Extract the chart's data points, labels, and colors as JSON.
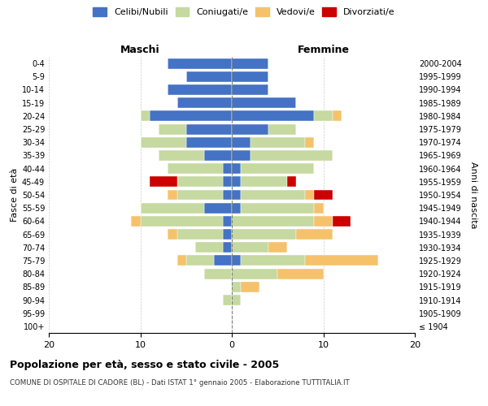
{
  "age_groups": [
    "100+",
    "95-99",
    "90-94",
    "85-89",
    "80-84",
    "75-79",
    "70-74",
    "65-69",
    "60-64",
    "55-59",
    "50-54",
    "45-49",
    "40-44",
    "35-39",
    "30-34",
    "25-29",
    "20-24",
    "15-19",
    "10-14",
    "5-9",
    "0-4"
  ],
  "birth_years": [
    "≤ 1904",
    "1905-1909",
    "1910-1914",
    "1915-1919",
    "1920-1924",
    "1925-1929",
    "1930-1934",
    "1935-1939",
    "1940-1944",
    "1945-1949",
    "1950-1954",
    "1955-1959",
    "1960-1964",
    "1965-1969",
    "1970-1974",
    "1975-1979",
    "1980-1984",
    "1985-1989",
    "1990-1994",
    "1995-1999",
    "2000-2004"
  ],
  "colors": {
    "celibe": "#4472c4",
    "coniugato": "#c5d9a0",
    "vedovo": "#f5c26b",
    "divorziato": "#cc0000"
  },
  "males": {
    "celibe": [
      0,
      0,
      0,
      0,
      0,
      2,
      1,
      1,
      1,
      3,
      1,
      1,
      1,
      3,
      5,
      5,
      9,
      6,
      7,
      5,
      7
    ],
    "coniugato": [
      0,
      0,
      1,
      0,
      3,
      3,
      3,
      5,
      9,
      7,
      5,
      5,
      6,
      5,
      5,
      3,
      1,
      0,
      0,
      0,
      0
    ],
    "vedovo": [
      0,
      0,
      0,
      0,
      0,
      1,
      0,
      1,
      1,
      0,
      1,
      0,
      0,
      0,
      0,
      0,
      0,
      0,
      0,
      0,
      0
    ],
    "divorziato": [
      0,
      0,
      0,
      0,
      0,
      0,
      0,
      0,
      0,
      0,
      0,
      3,
      0,
      0,
      0,
      0,
      0,
      0,
      0,
      0,
      0
    ]
  },
  "females": {
    "nubile": [
      0,
      0,
      0,
      0,
      0,
      1,
      0,
      0,
      0,
      1,
      1,
      1,
      1,
      2,
      2,
      4,
      9,
      7,
      4,
      4,
      4
    ],
    "coniugata": [
      0,
      0,
      1,
      1,
      5,
      7,
      4,
      7,
      9,
      8,
      7,
      5,
      8,
      9,
      6,
      3,
      2,
      0,
      0,
      0,
      0
    ],
    "vedova": [
      0,
      0,
      0,
      2,
      5,
      8,
      2,
      4,
      2,
      1,
      1,
      0,
      0,
      0,
      1,
      0,
      1,
      0,
      0,
      0,
      0
    ],
    "divorziata": [
      0,
      0,
      0,
      0,
      0,
      0,
      0,
      0,
      2,
      0,
      2,
      1,
      0,
      0,
      0,
      0,
      0,
      0,
      0,
      0,
      0
    ]
  },
  "xlim": 20,
  "title": "Popolazione per età, sesso e stato civile - 2005",
  "subtitle": "COMUNE DI OSPITALE DI CADORE (BL) - Dati ISTAT 1° gennaio 2005 - Elaborazione TUTTITALIA.IT",
  "ylabel": "Fasce di età",
  "ylabel_right": "Anni di nascita",
  "xlabel_maschi": "Maschi",
  "xlabel_femmine": "Femmine",
  "legend_labels": [
    "Celibi/Nubili",
    "Coniugati/e",
    "Vedovi/e",
    "Divorziati/e"
  ],
  "legend_colors": [
    "#4472c4",
    "#c5d9a0",
    "#f5c26b",
    "#cc0000"
  ],
  "background_color": "#ffffff",
  "grid_color": "#cccccc"
}
